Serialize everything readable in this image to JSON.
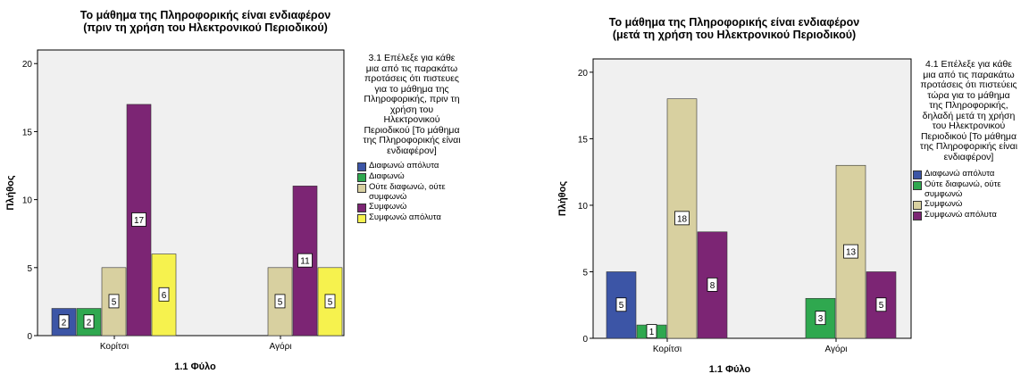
{
  "chart_data": [
    {
      "type": "bar",
      "title": "Το μάθημα της Πληροφορικής είναι ενδιαφέρον\n(πριν τη χρήση του Ηλεκτρονικού Περιοδικού)",
      "xlabel": "1.1 Φύλο",
      "ylabel": "Πλήθος",
      "ylim": [
        0,
        21
      ],
      "yticks": [
        "0",
        "5",
        "10",
        "15",
        "20"
      ],
      "categories": [
        "Κορίτσι",
        "Αγόρι"
      ],
      "legend_title": "3.1 Επέλεξε για κάθε\nμια από τις παρακάτω\nπροτάσεις ότι πιστευες\nγια το μάθημα της\nΠληροφορικής, πριν τη\nχρήση του\nΗλεκτρονικού\nΠεριοδικού [Το μάθημα\nτης Πληροφορικής είναι\nενδιαφέρον]",
      "legend_position": "right",
      "series": [
        {
          "name": "Διαφωνώ απόλυτα",
          "color": "#3c55a6",
          "values": [
            2,
            0
          ]
        },
        {
          "name": "Διαφωνώ",
          "color": "#2fa84f",
          "values": [
            2,
            0
          ]
        },
        {
          "name": "Ούτε διαφωνώ, ούτε\nσυμφωνώ",
          "color": "#d8d0a0",
          "values": [
            5,
            5
          ]
        },
        {
          "name": "Συμφωνώ",
          "color": "#7c2574",
          "values": [
            17,
            11
          ]
        },
        {
          "name": "Συμφωνώ απόλυτα",
          "color": "#f6f24e",
          "values": [
            6,
            5
          ]
        }
      ],
      "bar_labels": [
        [
          "2",
          "2",
          "5",
          "17",
          "6"
        ],
        [
          "",
          "",
          "5",
          "11",
          "5"
        ]
      ]
    },
    {
      "type": "bar",
      "title": "Το μάθημα της Πληροφορικής είναι ενδιαφέρον\n(μετά τη χρήση του Ηλεκτρονικού Περιοδικού)",
      "xlabel": "1.1 Φύλο",
      "ylabel": "Πλήθος",
      "ylim": [
        0,
        21
      ],
      "yticks": [
        "0",
        "5",
        "10",
        "15",
        "20"
      ],
      "categories": [
        "Κορίτσι",
        "Αγόρι"
      ],
      "legend_title": "4.1 Επέλεξε για κάθε\nμια από τις παρακάτω\nπροτάσεις ότι πιστεύεις\nτώρα για το μάθημα\nτης Πληροφορικής,\nδηλαδή μετά τη χρήση\nτου Ηλεκτρονικού\nΠεριοδικού [Το μάθημα\nτης Πληροφορικής είναι\nενδιαφέρον]",
      "legend_position": "right",
      "series": [
        {
          "name": "Διαφωνώ απόλυτα",
          "color": "#3c55a6",
          "values": [
            5,
            0
          ]
        },
        {
          "name": "Ούτε διαφωνώ, ούτε\nσυμφωνώ",
          "color": "#2fa84f",
          "values": [
            1,
            3
          ]
        },
        {
          "name": "Συμφωνώ",
          "color": "#d8d0a0",
          "values": [
            18,
            13
          ]
        },
        {
          "name": "Συμφωνώ απόλυτα",
          "color": "#7c2574",
          "values": [
            8,
            5
          ]
        }
      ],
      "bar_labels": [
        [
          "5",
          "1",
          "18",
          "8"
        ],
        [
          "",
          "3",
          "13",
          "5"
        ]
      ]
    }
  ]
}
